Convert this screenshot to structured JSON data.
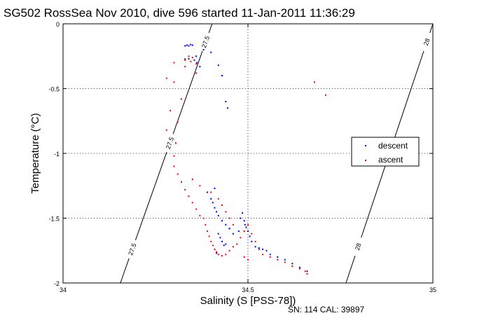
{
  "chart_data": {
    "type": "scatter",
    "title": "SG502 RossSea Nov 2010, dive 596 started 11-Jan-2011 11:36:29",
    "xlabel": "Salinity (S [PSS-78])",
    "ylabel": "Temperature (°C)",
    "footer": "SN: 114  CAL: 39897",
    "xlim": [
      34,
      35
    ],
    "ylim": [
      -2,
      0
    ],
    "xticks": [
      "34",
      "34.5",
      "35"
    ],
    "yticks": [
      "0",
      "-0.5",
      "-1",
      "-1.5",
      "-2"
    ],
    "grid": true,
    "legend_position": "right",
    "isopycnals": [
      {
        "label": "27.5",
        "points": [
          [
            34.403,
            0
          ],
          [
            34.155,
            -2
          ]
        ]
      },
      {
        "label": "28",
        "points": [
          [
            35.0,
            0
          ],
          [
            34.765,
            -2
          ]
        ]
      }
    ],
    "isopycnal_labels": [
      "27.5",
      "27.5",
      "27.5",
      "28",
      "28"
    ],
    "series": [
      {
        "name": "descent",
        "color": "#0000ff",
        "x": [
          34.33,
          34.335,
          34.34,
          34.345,
          34.35,
          34.34,
          34.355,
          34.36,
          34.362,
          34.37,
          34.38,
          34.4,
          34.42,
          34.43,
          34.44,
          34.445,
          34.41,
          34.39,
          34.4,
          34.405,
          34.41,
          34.415,
          34.42,
          34.43,
          34.44,
          34.45,
          34.46,
          34.475,
          34.48,
          34.485,
          34.49,
          34.492,
          34.495,
          34.5,
          34.505,
          34.51,
          34.52,
          34.53,
          34.54,
          34.55,
          34.56,
          34.58,
          34.6,
          34.62,
          34.64,
          34.66,
          34.42,
          34.425,
          34.43,
          34.435,
          34.41,
          34.415,
          34.44,
          34.45
        ],
        "y": [
          -0.17,
          -0.165,
          -0.17,
          -0.16,
          -0.165,
          -0.27,
          -0.28,
          -0.25,
          -0.3,
          -0.33,
          -0.2,
          -0.22,
          -0.32,
          -0.4,
          -0.6,
          -0.65,
          -1.27,
          -1.3,
          -1.35,
          -1.38,
          -1.42,
          -1.45,
          -1.48,
          -1.52,
          -1.55,
          -1.58,
          -1.62,
          -1.6,
          -1.5,
          -1.46,
          -1.52,
          -1.55,
          -1.57,
          -1.6,
          -1.64,
          -1.68,
          -1.72,
          -1.73,
          -1.74,
          -1.75,
          -1.78,
          -1.8,
          -1.82,
          -1.85,
          -1.88,
          -1.91,
          -1.62,
          -1.65,
          -1.68,
          -1.71,
          -1.74,
          -1.77,
          -1.7,
          -1.58
        ]
      },
      {
        "name": "ascent",
        "color": "#ff0000",
        "x": [
          34.33,
          34.34,
          34.345,
          34.35,
          34.36,
          34.33,
          34.33,
          34.3,
          34.32,
          34.29,
          34.31,
          34.28,
          34.305,
          34.3,
          34.3,
          34.31,
          34.32,
          34.33,
          34.34,
          34.35,
          34.36,
          34.37,
          34.38,
          34.385,
          34.39,
          34.395,
          34.4,
          34.405,
          34.41,
          34.415,
          34.42,
          34.43,
          34.44,
          34.45,
          34.46,
          34.47,
          34.48,
          34.49,
          34.5,
          34.51,
          34.52,
          34.53,
          34.54,
          34.56,
          34.58,
          34.6,
          34.62,
          34.64,
          34.655,
          34.66,
          34.68,
          34.71,
          34.35,
          34.37,
          34.4,
          34.42,
          34.43,
          34.44,
          34.45,
          34.46,
          34.49,
          34.5,
          34.3,
          34.28,
          34.36
        ],
        "y": [
          -0.27,
          -0.25,
          -0.29,
          -0.26,
          -0.31,
          -0.28,
          -0.33,
          -0.45,
          -0.58,
          -0.67,
          -0.76,
          -0.82,
          -0.92,
          -1.02,
          -1.1,
          -1.16,
          -1.22,
          -1.28,
          -1.33,
          -1.38,
          -1.43,
          -1.48,
          -1.5,
          -1.55,
          -1.6,
          -1.64,
          -1.68,
          -1.71,
          -1.74,
          -1.76,
          -1.78,
          -1.79,
          -1.78,
          -1.75,
          -1.72,
          -1.7,
          -1.65,
          -1.6,
          -1.55,
          -1.62,
          -1.68,
          -1.74,
          -1.78,
          -1.8,
          -1.82,
          -1.84,
          -1.87,
          -1.89,
          -1.91,
          -1.93,
          -0.45,
          -0.55,
          -1.2,
          -1.25,
          -1.3,
          -1.35,
          -1.4,
          -1.45,
          -1.5,
          -1.55,
          -1.8,
          -1.82,
          -0.3,
          -0.42,
          -0.38
        ]
      }
    ]
  }
}
